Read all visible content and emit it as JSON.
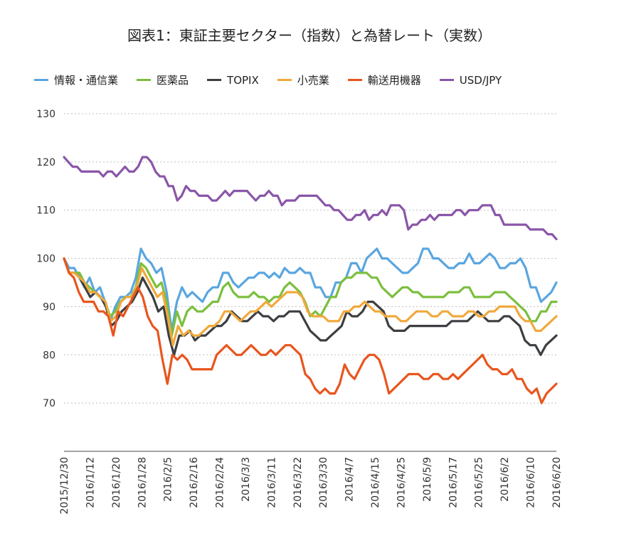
{
  "chart_data": {
    "type": "line",
    "title": "図表1：東証主要セクター（指数）と為替レート（実数）",
    "xlabel": "",
    "ylabel": "",
    "ylim": [
      60,
      130
    ],
    "yticks": [
      70,
      80,
      90,
      100,
      110,
      120,
      130
    ],
    "grid": true,
    "legend_position": "top",
    "x_tick_labels": [
      "2015/12/30",
      "2016/1/12",
      "2016/1/20",
      "2016/1/28",
      "2016/2/5",
      "2016/2/16",
      "2016/2/24",
      "2016/3/3",
      "2016/3/11",
      "2016/3/22",
      "2016/3/30",
      "2016/4/7",
      "2016/4/15",
      "2016/4/25",
      "2016/5/9",
      "2016/5/17",
      "2016/5/25",
      "2016/6/2",
      "2016/6/10",
      "2016/6/20"
    ],
    "series": [
      {
        "name": "情報・通信業",
        "color": "#5aa6e0",
        "values": [
          100,
          98,
          98,
          96,
          94,
          96,
          93,
          94,
          91,
          87,
          90,
          92,
          92,
          93,
          96,
          102,
          100,
          99,
          97,
          98,
          93,
          85,
          91,
          94,
          92,
          93,
          92,
          91,
          93,
          94,
          94,
          97,
          97,
          95,
          94,
          95,
          96,
          96,
          97,
          97,
          96,
          97,
          96,
          98,
          97,
          97,
          98,
          97,
          97,
          94,
          94,
          92,
          92,
          95,
          95,
          96,
          99,
          99,
          97,
          100,
          101,
          102,
          100,
          100,
          99,
          98,
          97,
          97,
          98,
          99,
          102,
          102,
          100,
          100,
          99,
          98,
          98,
          99,
          99,
          101,
          99,
          99,
          100,
          101,
          100,
          98,
          98,
          99,
          99,
          100,
          98,
          94,
          94,
          91,
          92,
          93,
          95
        ]
      },
      {
        "name": "医薬品",
        "color": "#7bbf3e",
        "values": [
          100,
          97,
          97,
          97,
          95,
          94,
          93,
          92,
          91,
          88,
          89,
          91,
          92,
          92,
          94,
          99,
          98,
          96,
          94,
          95,
          91,
          84,
          89,
          86,
          89,
          90,
          89,
          89,
          90,
          91,
          91,
          94,
          95,
          93,
          92,
          92,
          92,
          93,
          92,
          92,
          91,
          92,
          92,
          94,
          95,
          94,
          93,
          91,
          88,
          89,
          88,
          90,
          92,
          92,
          95,
          96,
          96,
          97,
          97,
          97,
          96,
          96,
          94,
          93,
          92,
          93,
          94,
          94,
          93,
          93,
          92,
          92,
          92,
          92,
          92,
          93,
          93,
          93,
          94,
          94,
          92,
          92,
          92,
          92,
          93,
          93,
          93,
          92,
          91,
          90,
          89,
          87,
          87,
          89,
          89,
          91,
          91
        ]
      },
      {
        "name": "TOPIX",
        "color": "#3c3f42",
        "values": [
          100,
          97,
          97,
          96,
          94,
          92,
          93,
          92,
          90,
          86,
          87,
          89,
          90,
          91,
          93,
          96,
          94,
          92,
          89,
          90,
          84,
          80,
          84,
          84,
          85,
          83,
          84,
          84,
          85,
          86,
          86,
          87,
          89,
          88,
          87,
          87,
          88,
          89,
          88,
          88,
          87,
          88,
          88,
          89,
          89,
          89,
          87,
          85,
          84,
          83,
          83,
          84,
          85,
          86,
          89,
          88,
          88,
          89,
          91,
          91,
          90,
          89,
          86,
          85,
          85,
          85,
          86,
          86,
          86,
          86,
          86,
          86,
          86,
          86,
          87,
          87,
          87,
          87,
          88,
          89,
          88,
          87,
          87,
          87,
          88,
          88,
          87,
          86,
          83,
          82,
          82,
          80,
          82,
          83,
          84
        ]
      },
      {
        "name": "小売業",
        "color": "#f0a93c",
        "values": [
          100,
          97,
          97,
          96,
          95,
          93,
          93,
          92,
          91,
          87,
          88,
          91,
          92,
          92,
          94,
          98,
          96,
          94,
          92,
          93,
          88,
          82,
          86,
          84,
          85,
          84,
          84,
          85,
          86,
          86,
          87,
          89,
          89,
          88,
          87,
          88,
          89,
          89,
          90,
          91,
          90,
          91,
          92,
          93,
          93,
          93,
          92,
          89,
          88,
          88,
          88,
          87,
          87,
          87,
          89,
          89,
          90,
          90,
          91,
          90,
          89,
          89,
          88,
          88,
          88,
          87,
          87,
          88,
          89,
          89,
          89,
          88,
          88,
          89,
          89,
          88,
          88,
          88,
          89,
          89,
          88,
          88,
          89,
          89,
          90,
          90,
          90,
          90,
          88,
          87,
          87,
          85,
          85,
          86,
          87,
          88
        ]
      },
      {
        "name": "輸送用機器",
        "color": "#e8561e",
        "values": [
          100,
          97,
          96,
          93,
          91,
          91,
          91,
          89,
          89,
          88,
          84,
          89,
          88,
          90,
          92,
          94,
          92,
          88,
          86,
          85,
          79,
          74,
          80,
          79,
          80,
          79,
          77,
          77,
          77,
          77,
          77,
          80,
          81,
          82,
          81,
          80,
          80,
          81,
          82,
          81,
          80,
          80,
          81,
          80,
          81,
          82,
          82,
          81,
          80,
          76,
          75,
          73,
          72,
          73,
          72,
          72,
          74,
          78,
          76,
          75,
          77,
          79,
          80,
          80,
          79,
          76,
          72,
          73,
          74,
          75,
          76,
          76,
          76,
          75,
          75,
          76,
          76,
          75,
          75,
          76,
          75,
          76,
          77,
          78,
          79,
          80,
          78,
          77,
          77,
          76,
          76,
          77,
          75,
          75,
          73,
          72,
          73,
          70,
          72,
          73,
          74
        ]
      },
      {
        "name": "USD/JPY",
        "color": "#8a56a8",
        "values": [
          121,
          120,
          119,
          119,
          118,
          118,
          118,
          118,
          118,
          117,
          118,
          118,
          117,
          118,
          119,
          118,
          118,
          119,
          121,
          121,
          120,
          118,
          117,
          117,
          115,
          115,
          112,
          113,
          115,
          114,
          114,
          113,
          113,
          113,
          112,
          112,
          113,
          114,
          113,
          114,
          114,
          114,
          114,
          113,
          112,
          113,
          113,
          114,
          113,
          113,
          111,
          112,
          112,
          112,
          113,
          113,
          113,
          113,
          113,
          112,
          111,
          111,
          110,
          110,
          109,
          108,
          108,
          109,
          109,
          110,
          108,
          109,
          109,
          110,
          109,
          111,
          111,
          111,
          110,
          106,
          107,
          107,
          108,
          108,
          109,
          108,
          109,
          109,
          109,
          109,
          110,
          110,
          109,
          110,
          110,
          110,
          111,
          111,
          111,
          109,
          109,
          107,
          107,
          107,
          107,
          107,
          107,
          106,
          106,
          106,
          106,
          105,
          105,
          104
        ]
      }
    ]
  }
}
